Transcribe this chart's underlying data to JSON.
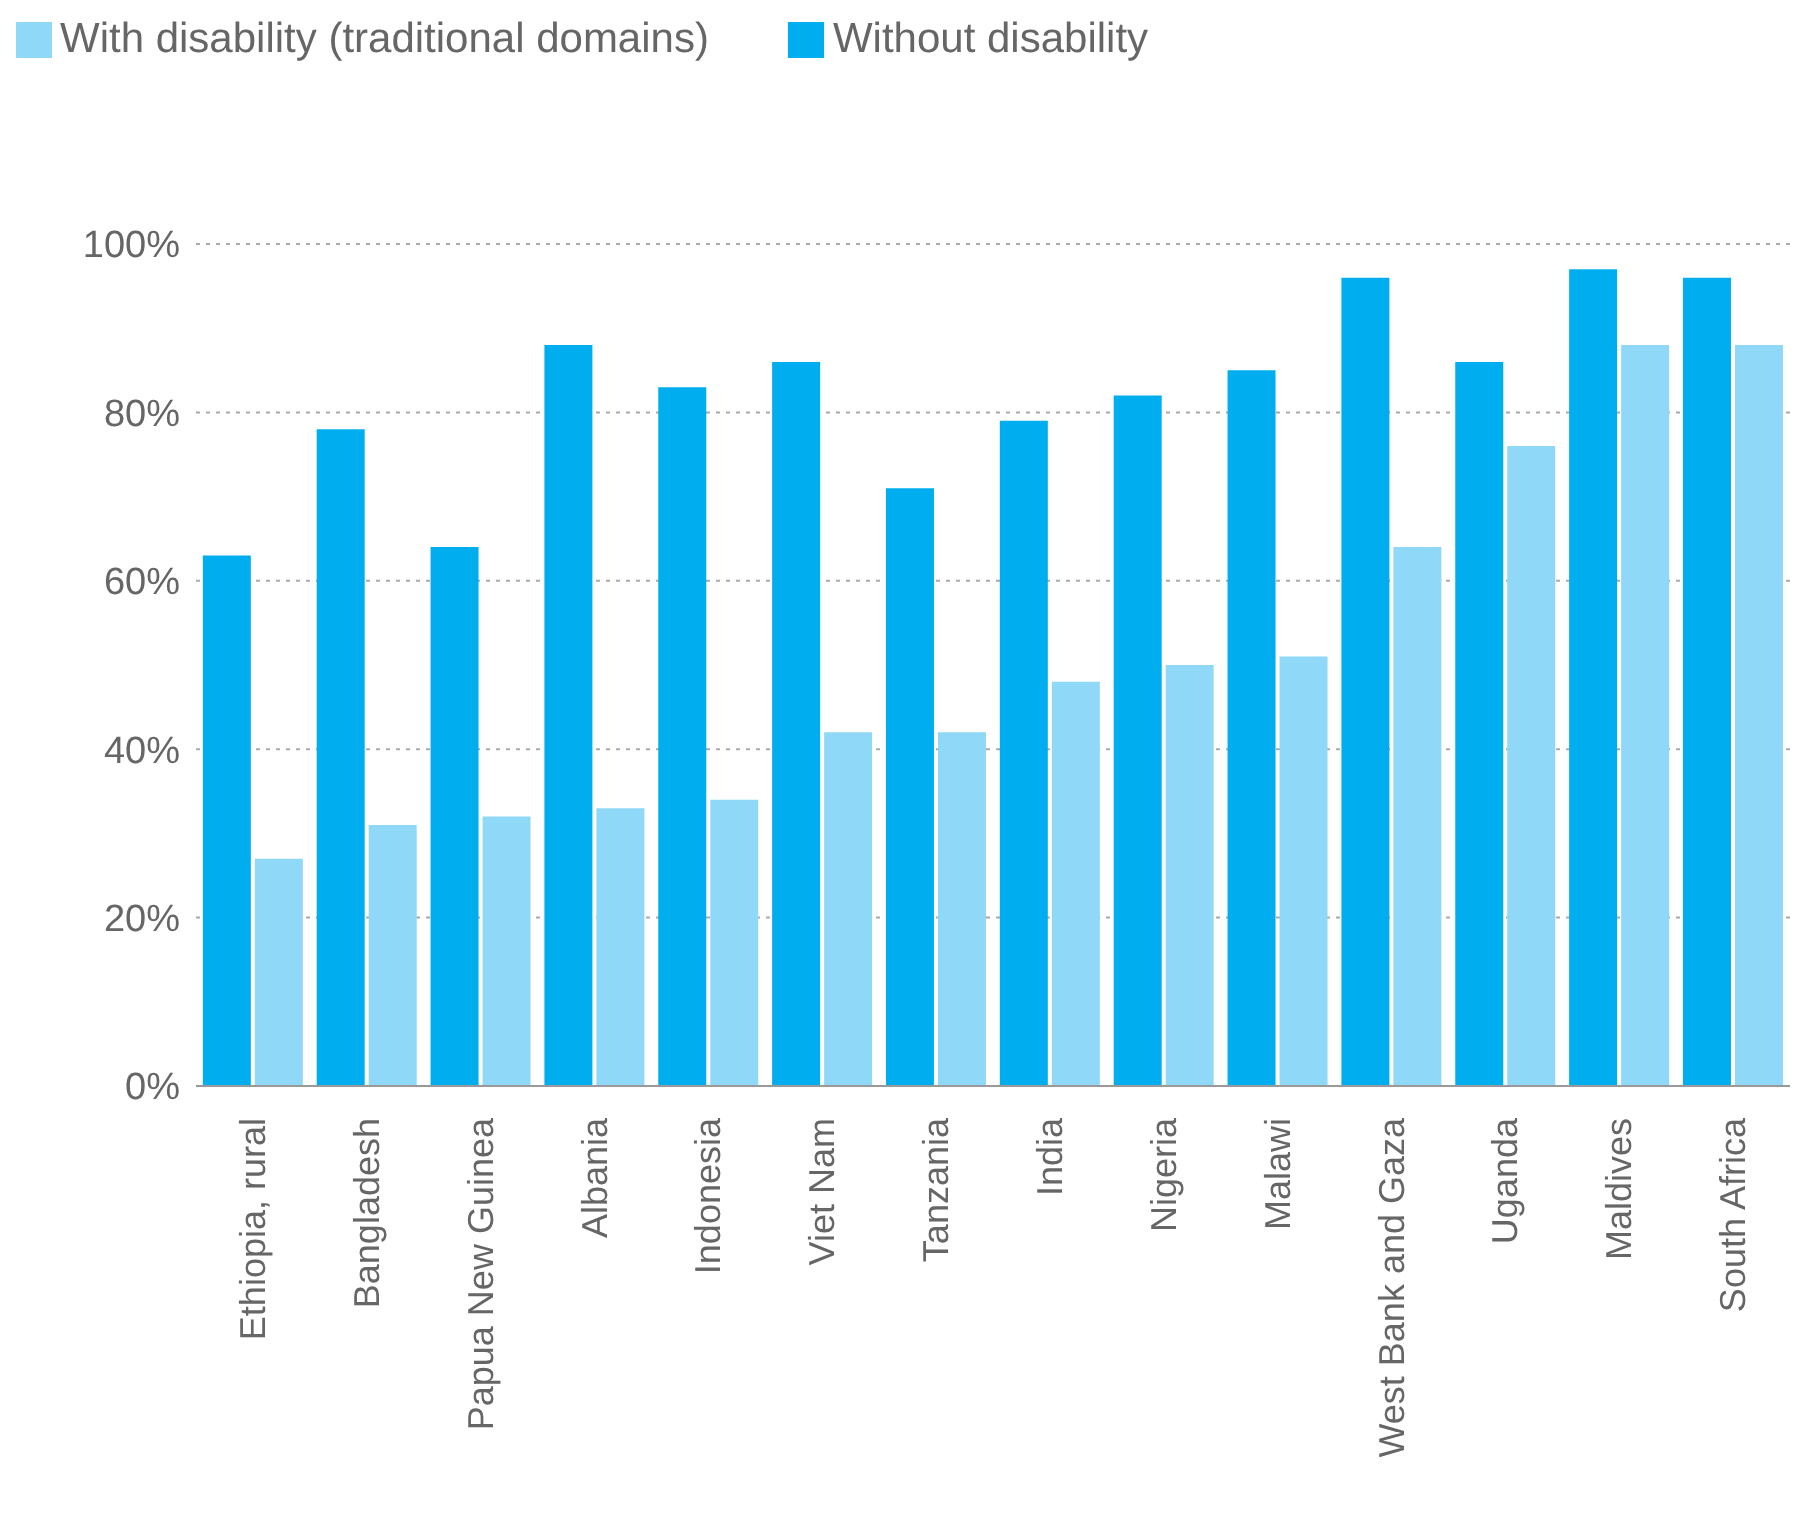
{
  "chart_data": {
    "type": "bar",
    "categories": [
      "Ethiopia, rural",
      "Bangladesh",
      "Papua New Guinea",
      "Albania",
      "Indonesia",
      "Viet Nam",
      "Tanzania",
      "India",
      "Nigeria",
      "Malawi",
      "West Bank and Gaza",
      "Uganda",
      "Maldives",
      "South Africa"
    ],
    "series": [
      {
        "name": "Without disability",
        "color": "#00aeef",
        "values": [
          63,
          78,
          64,
          88,
          83,
          86,
          71,
          79,
          82,
          85,
          96,
          86,
          97,
          96
        ]
      },
      {
        "name": "With disability (traditional domains)",
        "color": "#8fd8f8",
        "values": [
          27,
          31,
          32,
          33,
          34,
          42,
          42,
          48,
          50,
          51,
          64,
          76,
          88,
          88
        ]
      }
    ],
    "ylim": [
      0,
      100
    ],
    "yticks": [
      {
        "value": 0,
        "label": "0%"
      },
      {
        "value": 20,
        "label": "20%"
      },
      {
        "value": 40,
        "label": "40%"
      },
      {
        "value": 60,
        "label": "60%"
      },
      {
        "value": 80,
        "label": "80%"
      },
      {
        "value": 100,
        "label": "100%"
      }
    ],
    "grid": "y",
    "legend": "top left"
  }
}
